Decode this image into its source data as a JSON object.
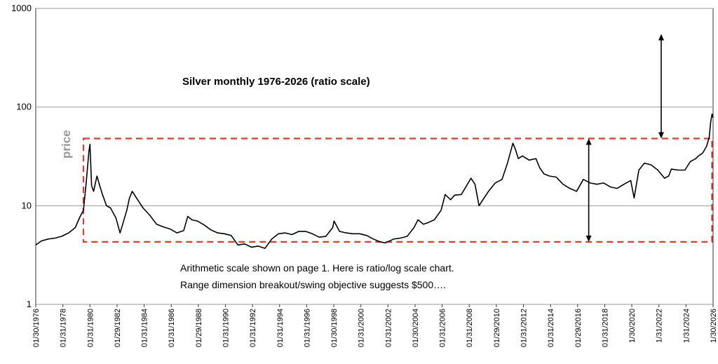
{
  "chart_data": {
    "type": "line",
    "title": "Silver monthly 1976-2026  (ratio scale)",
    "ylabel": "price",
    "xlabel": "",
    "yscale": "log",
    "ylim": [
      1,
      1000
    ],
    "xlim": [
      1976.08,
      2026.08
    ],
    "grid": "horizontal",
    "yticks": [
      "1",
      "10",
      "100",
      "1000"
    ],
    "xticks": [
      "01/30/1976",
      "01/31/1978",
      "01/31/1980",
      "01/29/1982",
      "01/31/1984",
      "01/31/1986",
      "01/29/1988",
      "01/31/1990",
      "01/31/1992",
      "01/31/1994",
      "01/31/1996",
      "01/30/1998",
      "01/31/2000",
      "01/31/2002",
      "01/30/2004",
      "01/31/2006",
      "01/31/2008",
      "01/29/2010",
      "01/31/2012",
      "01/31/2014",
      "01/29/2016",
      "01/31/2018",
      "1/30/2020",
      "1/31/2022",
      "1/31/2024",
      "1/30/2026"
    ],
    "series": [
      {
        "color": "#000000",
        "x": [
          1976.08,
          1976.5,
          1977.0,
          1977.5,
          1978.0,
          1978.5,
          1979.0,
          1979.3,
          1979.6,
          1979.8,
          1980.0,
          1980.08,
          1980.2,
          1980.35,
          1980.6,
          1980.8,
          1981.0,
          1981.3,
          1981.6,
          1982.0,
          1982.3,
          1982.5,
          1982.8,
          1983.0,
          1983.2,
          1983.6,
          1984.0,
          1984.5,
          1985.0,
          1985.5,
          1986.0,
          1986.5,
          1987.0,
          1987.3,
          1987.6,
          1988.0,
          1988.5,
          1989.0,
          1989.5,
          1990.0,
          1990.5,
          1991.0,
          1991.5,
          1992.0,
          1992.5,
          1993.0,
          1993.5,
          1994.0,
          1994.5,
          1995.0,
          1995.5,
          1996.0,
          1996.5,
          1997.0,
          1997.5,
          1998.0,
          1998.1,
          1998.5,
          1999.0,
          1999.5,
          2000.0,
          2000.5,
          2001.0,
          2001.5,
          2001.9,
          2002.5,
          2003.0,
          2003.5,
          2004.0,
          2004.3,
          2004.7,
          2005.0,
          2005.5,
          2006.0,
          2006.3,
          2006.7,
          2007.0,
          2007.5,
          2008.0,
          2008.2,
          2008.5,
          2008.8,
          2009.0,
          2009.5,
          2010.0,
          2010.5,
          2010.9,
          2011.3,
          2011.5,
          2011.7,
          2012.0,
          2012.5,
          2013.0,
          2013.3,
          2013.6,
          2014.0,
          2014.5,
          2015.0,
          2015.5,
          2016.0,
          2016.5,
          2017.0,
          2017.5,
          2018.0,
          2018.5,
          2019.0,
          2019.5,
          2020.0,
          2020.25,
          2020.6,
          2021.0,
          2021.5,
          2022.0,
          2022.5,
          2022.8,
          2023.0,
          2023.5,
          2024.0,
          2024.4,
          2024.8,
          2025.0,
          2025.3,
          2025.6,
          2025.8,
          2025.9,
          2026.0,
          2026.08
        ],
        "y": [
          4.0,
          4.4,
          4.6,
          4.7,
          4.9,
          5.3,
          6.0,
          7.5,
          9.0,
          17.0,
          35.0,
          42.0,
          16.0,
          14.0,
          20.0,
          16.0,
          13.0,
          10.0,
          9.5,
          7.5,
          5.3,
          6.5,
          9.0,
          12.0,
          14.0,
          11.5,
          9.5,
          8.0,
          6.5,
          6.1,
          5.8,
          5.3,
          5.6,
          7.8,
          7.2,
          7.0,
          6.4,
          5.7,
          5.3,
          5.2,
          5.0,
          4.0,
          4.1,
          3.8,
          3.9,
          3.7,
          4.6,
          5.2,
          5.3,
          5.1,
          5.5,
          5.5,
          5.2,
          4.8,
          4.9,
          6.0,
          7.0,
          5.5,
          5.3,
          5.2,
          5.2,
          5.0,
          4.6,
          4.3,
          4.2,
          4.6,
          4.7,
          4.9,
          6.0,
          7.2,
          6.5,
          6.7,
          7.2,
          9.0,
          13.0,
          11.5,
          12.8,
          13.0,
          17.0,
          19.0,
          16.5,
          10.0,
          11.0,
          14.0,
          17.0,
          18.5,
          27.0,
          43.0,
          37.0,
          30.0,
          32.0,
          29.0,
          30.0,
          24.0,
          21.0,
          20.0,
          19.5,
          16.5,
          15.0,
          14.0,
          18.5,
          17.0,
          16.5,
          17.0,
          15.5,
          15.0,
          16.5,
          18.0,
          12.0,
          23.0,
          27.0,
          26.0,
          23.0,
          19.0,
          20.0,
          23.5,
          23.0,
          23.0,
          28.0,
          30.0,
          32.0,
          34.0,
          40.0,
          50.0,
          70.0,
          85.0,
          78.0
        ]
      }
    ],
    "box": {
      "x_range": [
        1979.6,
        2026.0
      ],
      "y_range": [
        4.3,
        48.0
      ]
    },
    "arrows": [
      {
        "x": 2016.9,
        "y_range": [
          4.3,
          48.0
        ]
      },
      {
        "x": 2022.25,
        "y_range": [
          48.0,
          550.0
        ]
      }
    ],
    "annotations": [
      "Arithmetic scale shown on page 1.  Here is ratio/log scale chart.",
      "Range dimension breakout/swing objective suggests $500…."
    ]
  }
}
